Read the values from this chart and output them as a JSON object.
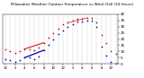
{
  "title": "Milwaukee Weather Outdoor Temperature vs Wind Chill (24 Hours)",
  "title_fontsize": 3.0,
  "title_color": "#000000",
  "background_color": "#ffffff",
  "plot_bg_color": "#ffffff",
  "grid_color": "#888888",
  "hours": [
    0,
    1,
    2,
    3,
    4,
    5,
    6,
    7,
    8,
    9,
    10,
    11,
    12,
    13,
    14,
    15,
    16,
    17,
    18,
    19,
    20,
    21,
    22,
    23
  ],
  "temp": [
    12,
    10,
    9,
    10,
    12,
    12,
    11,
    13,
    17,
    21,
    25,
    28,
    32,
    33,
    35,
    36,
    36,
    37,
    37,
    33,
    23,
    17,
    10,
    8
  ],
  "windchill": [
    4,
    3,
    2,
    3,
    5,
    5,
    4,
    6,
    11,
    15,
    20,
    24,
    27,
    30,
    32,
    34,
    34,
    35,
    35,
    30,
    14,
    7,
    2,
    0
  ],
  "temp_color": "#cc0000",
  "wc_color": "#0000cc",
  "ylim": [
    0,
    40
  ],
  "yticks": [
    0,
    5,
    10,
    15,
    20,
    25,
    30,
    35,
    40
  ],
  "ytick_labels": [
    "0",
    "5",
    "10",
    "15",
    "20",
    "25",
    "30",
    "35",
    "40"
  ],
  "ylabel_fontsize": 3.0,
  "xlabel_fontsize": 2.8,
  "marker_size": 0.8,
  "dot_size": 1.5,
  "seg_lw": 0.7,
  "seg_temp": [
    [
      4,
      8
    ]
  ],
  "seg_wc": [
    [
      4,
      8
    ]
  ],
  "xtick_positions": [
    0,
    2,
    4,
    6,
    8,
    10,
    12,
    14,
    16,
    18,
    20,
    22
  ],
  "xtick_labels": [
    "12",
    "2",
    "4",
    "6",
    "8",
    "10",
    "12",
    "2",
    "4",
    "6",
    "8",
    "10"
  ]
}
